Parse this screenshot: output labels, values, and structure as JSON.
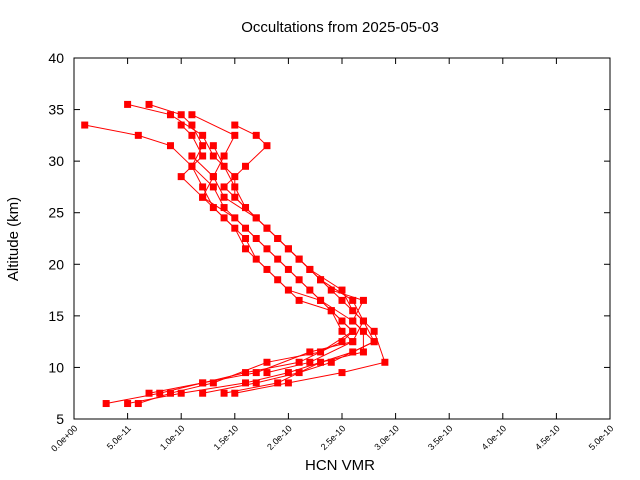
{
  "chart_data": {
    "type": "line",
    "title": "Occultations from 2025-05-03",
    "xlabel": "HCN VMR",
    "ylabel": "Altitude (km)",
    "xlim": [
      0,
      5e-10
    ],
    "ylim": [
      5,
      40
    ],
    "x_ticks": [
      0,
      5e-11,
      1e-10,
      1.5e-10,
      2e-10,
      2.5e-10,
      3e-10,
      3.5e-10,
      4e-10,
      4.5e-10,
      5e-10
    ],
    "x_tick_labels": [
      "0.0e+00",
      "5.0e-11",
      "1.0e-10",
      "1.5e-10",
      "2.0e-10",
      "2.5e-10",
      "3.0e-10",
      "3.5e-10",
      "4.0e-10",
      "4.5e-10",
      "5.0e-10"
    ],
    "y_ticks": [
      5,
      10,
      15,
      20,
      25,
      30,
      35,
      40
    ],
    "y_tick_labels": [
      "5",
      "10",
      "15",
      "20",
      "25",
      "30",
      "35",
      "40"
    ],
    "grid": false,
    "legend": "none",
    "colors": {
      "red": "#ff0000",
      "green": "#00cc00"
    },
    "series": [
      {
        "color": "red",
        "marker": "square",
        "points": [
          [
            1e-11,
            33.5
          ],
          [
            6e-11,
            32.5
          ],
          [
            9e-11,
            31.5
          ],
          [
            1.1e-10,
            29.5
          ],
          [
            1.3e-10,
            27.5
          ],
          [
            1.4e-10,
            25.5
          ],
          [
            1.6e-10,
            23.5
          ],
          [
            1.8e-10,
            21.5
          ],
          [
            2e-10,
            19.5
          ],
          [
            2.2e-10,
            17.5
          ],
          [
            2.4e-10,
            15.5
          ],
          [
            2.5e-10,
            13.5
          ],
          [
            2.6e-10,
            12.5
          ],
          [
            2.2e-10,
            11.5
          ],
          [
            1.7e-10,
            9.5
          ],
          [
            1.2e-10,
            8.5
          ],
          [
            8e-11,
            7.5
          ],
          [
            3e-11,
            6.5
          ]
        ]
      },
      {
        "color": "red",
        "marker": "square",
        "points": [
          [
            5e-11,
            35.5
          ],
          [
            9e-11,
            34.5
          ],
          [
            1.2e-10,
            32.5
          ],
          [
            1.3e-10,
            30.5
          ],
          [
            1.5e-10,
            28.5
          ],
          [
            1.5e-10,
            26.5
          ],
          [
            1.7e-10,
            24.5
          ],
          [
            1.9e-10,
            22.5
          ],
          [
            2.1e-10,
            20.5
          ],
          [
            2.3e-10,
            18.5
          ],
          [
            2.5e-10,
            16.5
          ],
          [
            2.7e-10,
            14.5
          ],
          [
            2.8e-10,
            12.5
          ],
          [
            2.6e-10,
            11.5
          ],
          [
            2e-10,
            9.5
          ],
          [
            1.6e-10,
            8.5
          ],
          [
            1e-10,
            7.5
          ],
          [
            5e-11,
            6.5
          ]
        ]
      },
      {
        "color": "red",
        "marker": "square",
        "points": [
          [
            7e-11,
            35.5
          ],
          [
            1e-10,
            34.5
          ],
          [
            1.1e-10,
            33.5
          ],
          [
            1.2e-10,
            31.5
          ],
          [
            1.1e-10,
            29.5
          ],
          [
            1.2e-10,
            27.5
          ],
          [
            1.3e-10,
            25.5
          ],
          [
            1.5e-10,
            23.5
          ],
          [
            1.6e-10,
            21.5
          ],
          [
            1.8e-10,
            19.5
          ],
          [
            2e-10,
            17.5
          ],
          [
            2.3e-10,
            16.5
          ],
          [
            2.5e-10,
            14.5
          ],
          [
            2.6e-10,
            13.5
          ],
          [
            2.3e-10,
            11.5
          ],
          [
            1.8e-10,
            10.5
          ],
          [
            1.3e-10,
            8.5
          ],
          [
            9e-11,
            7.5
          ],
          [
            6e-11,
            6.5
          ]
        ]
      },
      {
        "color": "red",
        "marker": "square",
        "points": [
          [
            1e-10,
            33.5
          ],
          [
            1.1e-10,
            32.5
          ],
          [
            1.2e-10,
            30.5
          ],
          [
            1e-10,
            28.5
          ],
          [
            1.2e-10,
            26.5
          ],
          [
            1.4e-10,
            24.5
          ],
          [
            1.6e-10,
            22.5
          ],
          [
            1.7e-10,
            20.5
          ],
          [
            1.9e-10,
            18.5
          ],
          [
            2.1e-10,
            16.5
          ],
          [
            2.4e-10,
            15.5
          ],
          [
            2.6e-10,
            13.5
          ],
          [
            2.5e-10,
            12.5
          ],
          [
            2.1e-10,
            10.5
          ],
          [
            1.6e-10,
            9.5
          ],
          [
            1.2e-10,
            8.5
          ],
          [
            7e-11,
            7.5
          ]
        ]
      },
      {
        "color": "red",
        "marker": "square",
        "points": [
          [
            1.1e-10,
            34.5
          ],
          [
            1.5e-10,
            32.5
          ],
          [
            1.4e-10,
            30.5
          ],
          [
            1.3e-10,
            28.5
          ],
          [
            1.2e-10,
            26.5
          ],
          [
            1.5e-10,
            24.5
          ],
          [
            1.7e-10,
            22.5
          ],
          [
            1.9e-10,
            20.5
          ],
          [
            2.1e-10,
            18.5
          ],
          [
            2.3e-10,
            16.5
          ],
          [
            2.6e-10,
            14.5
          ],
          [
            2.7e-10,
            13.5
          ],
          [
            2.7e-10,
            11.5
          ],
          [
            2.3e-10,
            10.5
          ],
          [
            1.9e-10,
            8.5
          ],
          [
            1.4e-10,
            7.5
          ]
        ]
      },
      {
        "color": "red",
        "marker": "square",
        "points": [
          [
            1.5e-10,
            33.5
          ],
          [
            1.7e-10,
            32.5
          ],
          [
            1.8e-10,
            31.5
          ],
          [
            1.6e-10,
            29.5
          ],
          [
            1.4e-10,
            27.5
          ],
          [
            1.6e-10,
            25.5
          ],
          [
            1.8e-10,
            23.5
          ],
          [
            2e-10,
            21.5
          ],
          [
            2.2e-10,
            19.5
          ],
          [
            2.4e-10,
            17.5
          ],
          [
            2.7e-10,
            16.5
          ],
          [
            2.6e-10,
            14.5
          ],
          [
            2.8e-10,
            12.5
          ],
          [
            2.4e-10,
            10.5
          ],
          [
            2.1e-10,
            9.5
          ],
          [
            1.7e-10,
            8.5
          ],
          [
            1.2e-10,
            7.5
          ]
        ]
      },
      {
        "color": "red",
        "marker": "square",
        "points": [
          [
            1.3e-10,
            31.5
          ],
          [
            1.4e-10,
            29.5
          ],
          [
            1.5e-10,
            27.5
          ],
          [
            1.6e-10,
            25.5
          ],
          [
            1.8e-10,
            23.5
          ],
          [
            2e-10,
            21.5
          ],
          [
            2.2e-10,
            19.5
          ],
          [
            2.5e-10,
            17.5
          ],
          [
            2.6e-10,
            15.5
          ],
          [
            2.8e-10,
            13.5
          ],
          [
            2.9e-10,
            10.5
          ],
          [
            2.5e-10,
            9.5
          ],
          [
            2e-10,
            8.5
          ],
          [
            1.5e-10,
            7.5
          ]
        ]
      },
      {
        "color": "red",
        "marker": "square",
        "points": [
          [
            1.1e-10,
            30.5
          ],
          [
            1.3e-10,
            28.5
          ],
          [
            1.4e-10,
            26.5
          ],
          [
            1.7e-10,
            24.5
          ],
          [
            1.9e-10,
            22.5
          ],
          [
            2.1e-10,
            20.5
          ],
          [
            2.3e-10,
            18.5
          ],
          [
            2.6e-10,
            16.5
          ],
          [
            2.7e-10,
            14.5
          ],
          [
            2.6e-10,
            12.5
          ],
          [
            2.2e-10,
            10.5
          ],
          [
            1.8e-10,
            9.5
          ]
        ]
      }
    ]
  }
}
